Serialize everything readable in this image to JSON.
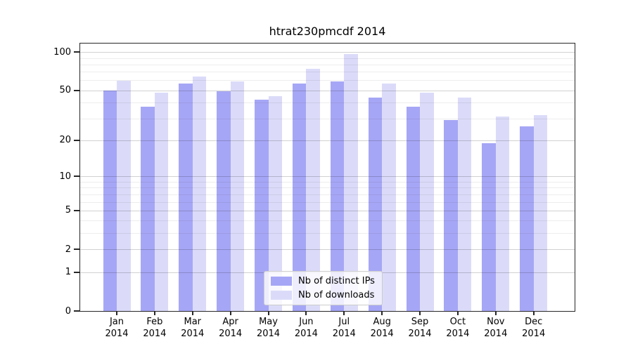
{
  "chart_data": {
    "type": "bar",
    "title": "htrat230pmcdf 2014",
    "categories": [
      "Jan",
      "Feb",
      "Mar",
      "Apr",
      "May",
      "Jun",
      "Jul",
      "Aug",
      "Sep",
      "Oct",
      "Nov",
      "Dec"
    ],
    "category_year": "2014",
    "series": [
      {
        "name": "Nb of distinct IPs",
        "color": "#a6a6f6",
        "values": [
          50,
          37,
          57,
          49,
          42,
          57,
          59,
          44,
          37,
          29,
          19,
          26
        ]
      },
      {
        "name": "Nb of downloads",
        "color": "#dbdbf9",
        "values": [
          60,
          48,
          64,
          59,
          45,
          74,
          96,
          57,
          48,
          44,
          31,
          32
        ]
      }
    ],
    "yscale": "log1p",
    "ylim": [
      0,
      115
    ],
    "y_major_ticks": [
      0,
      1,
      2,
      5,
      10,
      20,
      50,
      100
    ],
    "y_minor_gridlines": [
      3,
      4,
      6,
      7,
      8,
      9,
      30,
      40,
      60,
      70,
      80,
      90
    ],
    "grid": true,
    "grid_on_top_of_bars": true,
    "legend_position": "lower-center",
    "xlabel": "",
    "ylabel": ""
  },
  "colors": {
    "bar_distinct_ips": "#a6a6f6",
    "bar_downloads": "#dbdbf9",
    "grid_major": "rgba(0,0,0,0.18)",
    "grid_minor": "rgba(0,0,0,0.07)",
    "frame": "#262626",
    "text": "#000000",
    "legend_border": "#cccccc",
    "legend_background": "rgba(255,255,255,0.8)"
  }
}
